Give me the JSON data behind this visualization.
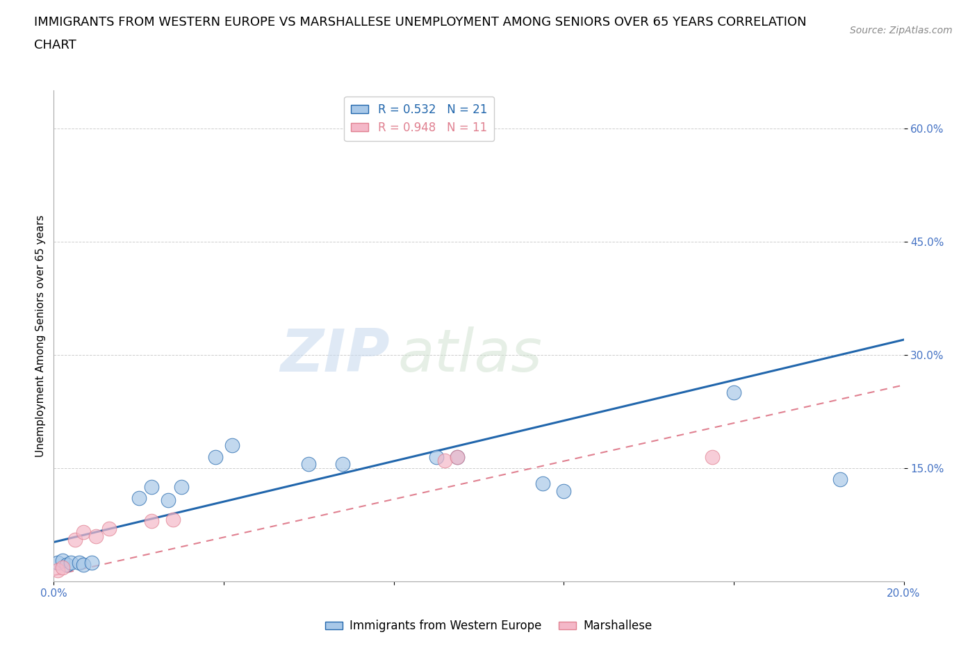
{
  "title_line1": "IMMIGRANTS FROM WESTERN EUROPE VS MARSHALLESE UNEMPLOYMENT AMONG SENIORS OVER 65 YEARS CORRELATION",
  "title_line2": "CHART",
  "source": "Source: ZipAtlas.com",
  "ylabel": "Unemployment Among Seniors over 65 years",
  "legend_blue_r": "R = 0.532",
  "legend_blue_n": "N = 21",
  "legend_pink_r": "R = 0.948",
  "legend_pink_n": "N = 11",
  "xlim": [
    0.0,
    0.2
  ],
  "ylim": [
    0.0,
    0.65
  ],
  "xtick_positions": [
    0.0,
    0.04,
    0.08,
    0.12,
    0.16,
    0.2
  ],
  "xtick_labels": [
    "0.0%",
    "",
    "",
    "",
    "",
    "20.0%"
  ],
  "ytick_positions": [
    0.15,
    0.3,
    0.45,
    0.6
  ],
  "ytick_labels": [
    "15.0%",
    "30.0%",
    "45.0%",
    "60.0%"
  ],
  "blue_scatter_x": [
    0.001,
    0.002,
    0.003,
    0.004,
    0.006,
    0.007,
    0.009,
    0.02,
    0.023,
    0.027,
    0.03,
    0.038,
    0.042,
    0.06,
    0.068,
    0.09,
    0.095,
    0.115,
    0.12,
    0.16,
    0.185
  ],
  "blue_scatter_y": [
    0.025,
    0.028,
    0.022,
    0.025,
    0.025,
    0.022,
    0.025,
    0.11,
    0.125,
    0.108,
    0.125,
    0.165,
    0.18,
    0.155,
    0.155,
    0.165,
    0.165,
    0.13,
    0.12,
    0.25,
    0.135
  ],
  "pink_scatter_x": [
    0.001,
    0.002,
    0.005,
    0.007,
    0.01,
    0.013,
    0.023,
    0.028,
    0.092,
    0.095,
    0.155
  ],
  "pink_scatter_y": [
    0.015,
    0.018,
    0.055,
    0.065,
    0.06,
    0.07,
    0.08,
    0.082,
    0.16,
    0.165,
    0.165
  ],
  "blue_line_x": [
    0.0,
    0.2
  ],
  "blue_line_y": [
    0.052,
    0.32
  ],
  "pink_line_x": [
    0.0,
    0.2
  ],
  "pink_line_y": [
    0.008,
    0.26
  ],
  "blue_color": "#a8c8e8",
  "blue_line_color": "#2166ac",
  "pink_color": "#f4b8c8",
  "pink_line_color": "#e08090",
  "background_color": "#ffffff",
  "grid_color": "#c8c8c8",
  "watermark_zip": "ZIP",
  "watermark_atlas": "atlas",
  "title_fontsize": 13,
  "axis_label_fontsize": 11,
  "tick_fontsize": 11,
  "legend_fontsize": 12,
  "source_fontsize": 10
}
